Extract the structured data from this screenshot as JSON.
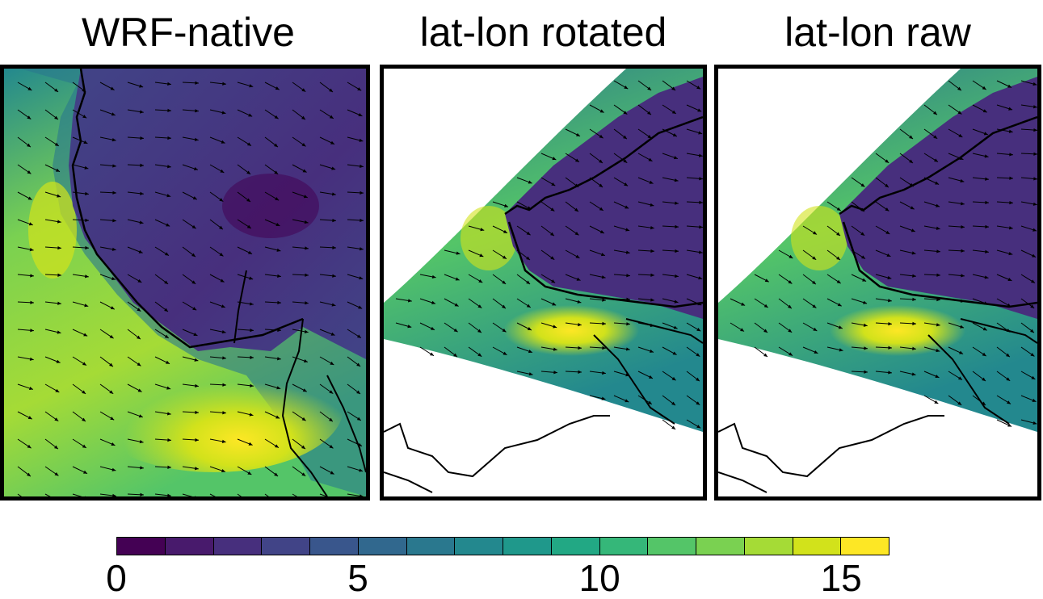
{
  "panels": [
    {
      "id": "wrf-native",
      "title": "WRF-native"
    },
    {
      "id": "latlon-rotated",
      "title": "lat-lon rotated"
    },
    {
      "id": "latlon-raw",
      "title": "lat-lon raw"
    }
  ],
  "colorbar": {
    "min": 0,
    "max": 16,
    "colors": [
      "#440154",
      "#481a6c",
      "#472f7d",
      "#414487",
      "#39568c",
      "#31688e",
      "#2a788e",
      "#23888e",
      "#1f988b",
      "#22a884",
      "#35b779",
      "#54c568",
      "#7ad151",
      "#a5db36",
      "#d2e21b",
      "#fde725"
    ],
    "ticks": [
      {
        "value": 0,
        "label": "0"
      },
      {
        "value": 5,
        "label": "5"
      },
      {
        "value": 10,
        "label": "10"
      },
      {
        "value": 15,
        "label": "15"
      }
    ]
  }
}
